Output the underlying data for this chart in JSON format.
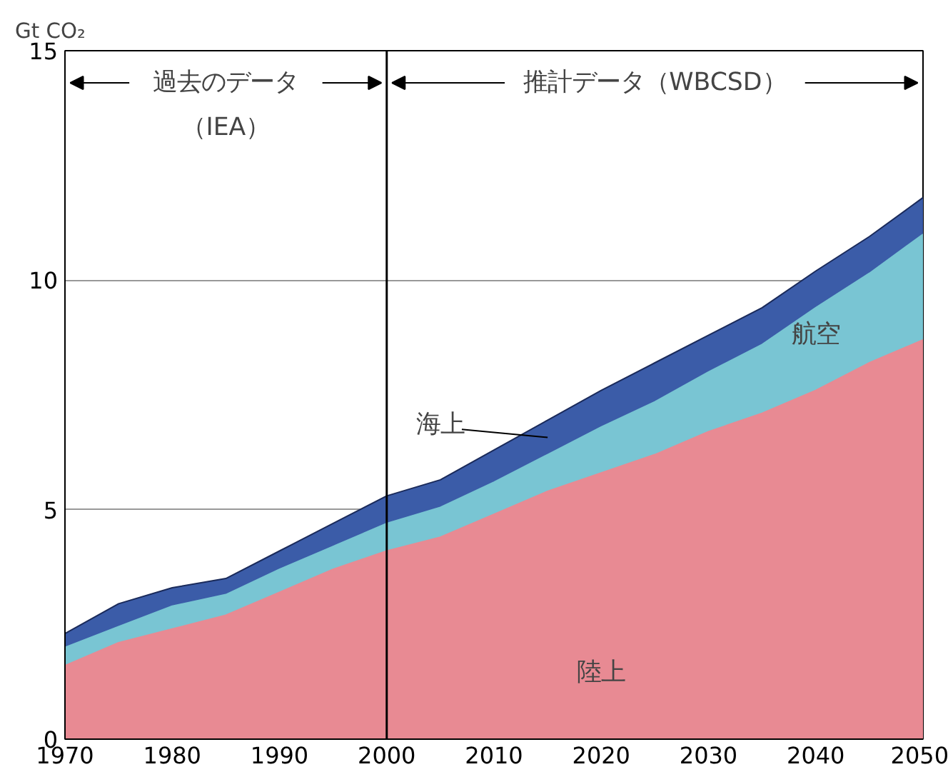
{
  "chart_data": {
    "type": "area",
    "stacked": true,
    "ylabel": "Gt CO₂",
    "x": [
      1970,
      1975,
      1980,
      1985,
      1990,
      1995,
      2000,
      2005,
      2010,
      2015,
      2020,
      2025,
      2030,
      2035,
      2040,
      2045,
      2050
    ],
    "series": [
      {
        "name": "陸上",
        "color": "#e88a93",
        "values": [
          1.6,
          2.1,
          2.4,
          2.7,
          3.2,
          3.7,
          4.1,
          4.4,
          4.9,
          5.4,
          5.8,
          6.2,
          6.7,
          7.1,
          7.6,
          8.2,
          8.7
        ]
      },
      {
        "name": "航空",
        "color": "#79c5d3",
        "values": [
          0.4,
          0.35,
          0.5,
          0.45,
          0.5,
          0.5,
          0.6,
          0.65,
          0.7,
          0.8,
          1.0,
          1.15,
          1.3,
          1.5,
          1.8,
          1.95,
          2.3
        ]
      },
      {
        "name": "海上",
        "color": "#3b5ca8",
        "values": [
          0.3,
          0.5,
          0.4,
          0.35,
          0.4,
          0.5,
          0.6,
          0.6,
          0.7,
          0.75,
          0.8,
          0.85,
          0.8,
          0.8,
          0.8,
          0.8,
          0.8
        ]
      }
    ],
    "xlim": [
      1970,
      2050
    ],
    "ylim": [
      0,
      15
    ],
    "xticks": [
      1970,
      1980,
      1990,
      2000,
      2010,
      2020,
      2030,
      2040,
      2050
    ],
    "yticks": [
      0,
      5,
      10,
      15
    ],
    "grid": "y",
    "ref_lines": [
      {
        "axis": "x",
        "value": 2000,
        "color": "#000000"
      }
    ],
    "annotations": [
      {
        "text": "過去のデータ",
        "x": 2000,
        "y": 14.3
      },
      "（IEA）",
      {
        "text": "推計データ（WBCSD）",
        "x": 2000,
        "y": 14.3
      }
    ]
  }
}
